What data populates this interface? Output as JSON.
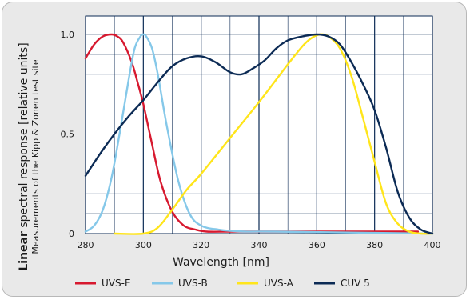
{
  "chart_data": {
    "type": "line",
    "title": "",
    "xlabel": "Wavelength [nm]",
    "ylabel_bold": "Linear",
    "ylabel_rest": " spectral response [relative units]",
    "ysublabel": "Measurements of the Kipp & Zonen test site",
    "xlim": [
      280,
      400
    ],
    "ylim": [
      0,
      1.0
    ],
    "xticks": [
      "280",
      "300",
      "320",
      "340",
      "360",
      "380",
      "400"
    ],
    "yticks": [
      "0",
      "0.5",
      "1.0"
    ],
    "grid": true,
    "legend_position": "bottom",
    "series": [
      {
        "name": "UVS-E",
        "color": "#d7192f",
        "x": [
          280,
          283,
          286,
          289,
          291,
          293,
          296,
          298,
          300,
          303,
          306,
          310,
          314,
          318,
          322,
          330,
          340,
          360,
          380,
          395
        ],
        "y": [
          0.88,
          0.95,
          0.99,
          1.0,
          0.99,
          0.96,
          0.86,
          0.76,
          0.65,
          0.45,
          0.26,
          0.11,
          0.04,
          0.02,
          0.01,
          0.01,
          0.01,
          0.01,
          0.01,
          0.01
        ]
      },
      {
        "name": "UVS-B",
        "color": "#85c8e9",
        "x": [
          280,
          283,
          286,
          289,
          292,
          295,
          297,
          299,
          300,
          301,
          303,
          305,
          308,
          312,
          316,
          320,
          326,
          335,
          345,
          400
        ],
        "y": [
          0.01,
          0.04,
          0.12,
          0.28,
          0.52,
          0.78,
          0.93,
          0.99,
          1.0,
          0.99,
          0.93,
          0.8,
          0.55,
          0.27,
          0.1,
          0.04,
          0.02,
          0.01,
          0.01,
          0.0
        ]
      },
      {
        "name": "UVS-A",
        "color": "#ffe51b",
        "x": [
          290,
          300,
          305,
          310,
          315,
          320,
          330,
          340,
          350,
          355,
          358,
          361,
          364,
          368,
          372,
          376,
          380,
          384,
          388,
          392,
          396,
          400
        ],
        "y": [
          0.0,
          0.0,
          0.03,
          0.12,
          0.22,
          0.3,
          0.48,
          0.66,
          0.85,
          0.94,
          0.98,
          1.0,
          0.99,
          0.93,
          0.79,
          0.58,
          0.36,
          0.15,
          0.05,
          0.01,
          0.0,
          0.0
        ]
      },
      {
        "name": "CUV 5",
        "color": "#0c2b55",
        "x": [
          280,
          285,
          290,
          295,
          300,
          305,
          310,
          315,
          320,
          325,
          330,
          334,
          338,
          342,
          346,
          350,
          355,
          360,
          364,
          368,
          372,
          376,
          380,
          384,
          388,
          392,
          396,
          400
        ],
        "y": [
          0.29,
          0.4,
          0.5,
          0.59,
          0.67,
          0.76,
          0.84,
          0.88,
          0.89,
          0.86,
          0.81,
          0.8,
          0.83,
          0.87,
          0.93,
          0.97,
          0.99,
          1.0,
          0.99,
          0.95,
          0.86,
          0.75,
          0.62,
          0.43,
          0.21,
          0.08,
          0.02,
          0.0
        ]
      }
    ]
  }
}
